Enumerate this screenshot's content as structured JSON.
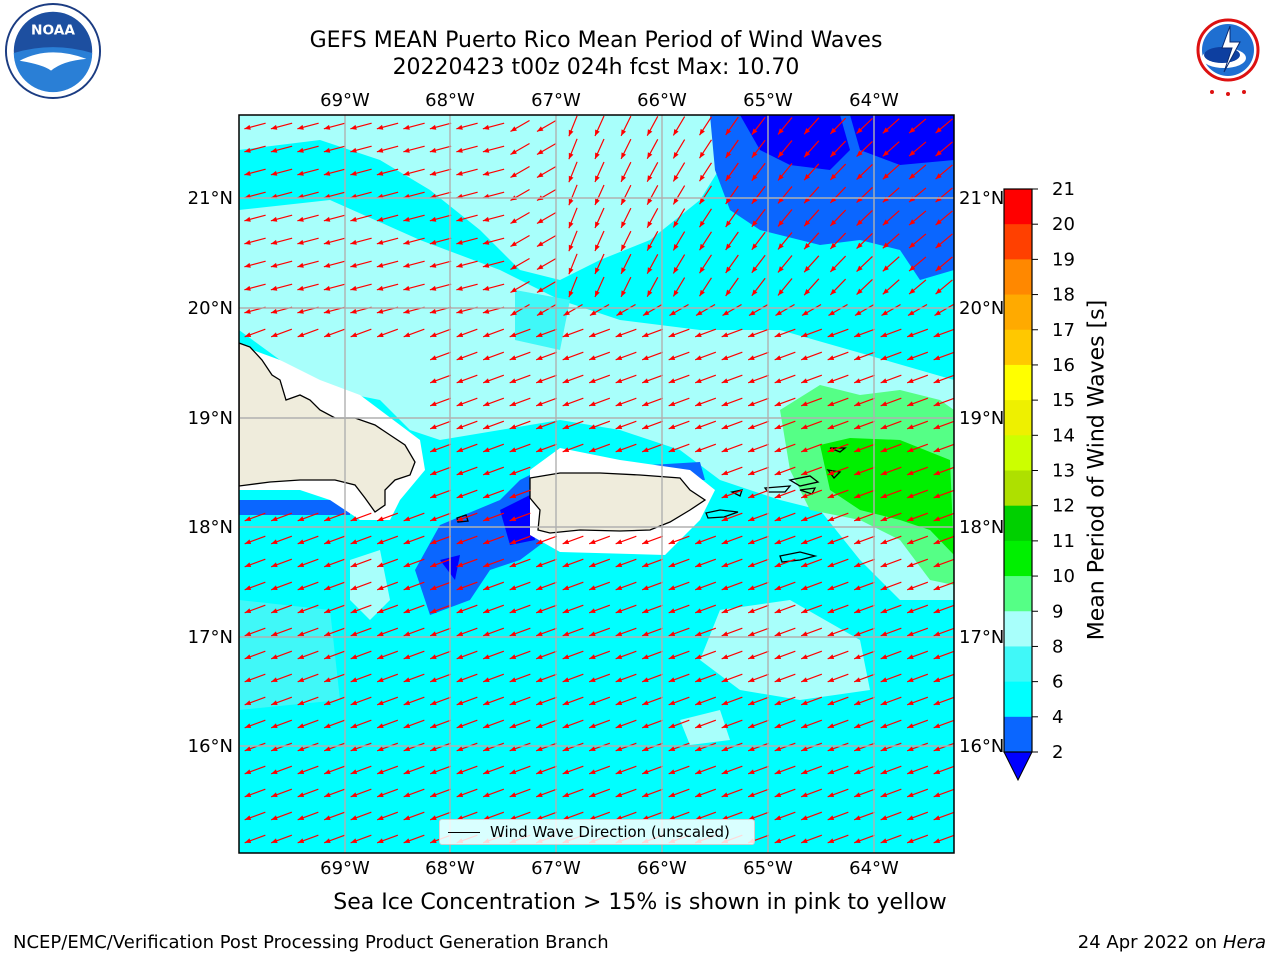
{
  "header": {
    "title_line1": "GEFS MEAN Puerto Rico Mean Period of Wind Waves",
    "title_line2": "20220423 t00z 024h fcst   Max: 10.70"
  },
  "logos": {
    "left": "noaa-logo-icon",
    "right": "nws-logo-icon"
  },
  "map": {
    "lon_ticks": [
      "69°W",
      "68°W",
      "67°W",
      "66°W",
      "65°W",
      "64°W"
    ],
    "lat_ticks": [
      "21°N",
      "20°N",
      "19°N",
      "18°N",
      "17°N",
      "16°N"
    ],
    "legend_label": "Wind Wave Direction (unscaled)",
    "land_color": "#efecdc",
    "arrow_color": "#ff0000"
  },
  "colorbar": {
    "label": "Mean Period of Wind Waves [s]",
    "ticks": [
      "2",
      "4",
      "6",
      "8",
      "9",
      "10",
      "11",
      "12",
      "13",
      "14",
      "15",
      "16",
      "17",
      "18",
      "19",
      "20",
      "21"
    ],
    "colors": [
      "#0000ff",
      "#0a66ff",
      "#00ffff",
      "#40f8f8",
      "#a8fffb",
      "#55ff86",
      "#00f000",
      "#00d000",
      "#aee000",
      "#ccff00",
      "#eef000",
      "#ffff00",
      "#ffc800",
      "#ffaa00",
      "#ff8800",
      "#ff4000",
      "#ff0000"
    ]
  },
  "note": "Sea Ice Concentration > 15% is shown in pink to yellow",
  "footer": {
    "left": "NCEP/EMC/Verification Post Processing Product Generation Branch",
    "right_date": "24 Apr 2022 on ",
    "right_host": "Hera"
  }
}
